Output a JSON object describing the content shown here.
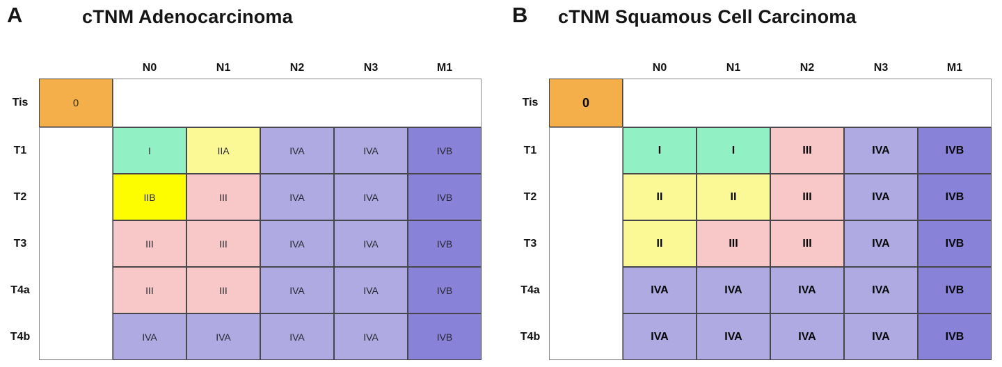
{
  "panels": [
    {
      "letter": "A",
      "title": "cTNM Adenocarcinoma",
      "col_headers": [
        "N0",
        "N1",
        "N2",
        "N3",
        "M1"
      ],
      "row_headers": [
        "Tis",
        "T1",
        "T2",
        "T3",
        "T4a",
        "T4b"
      ],
      "tis": {
        "label": "0",
        "color": "orange"
      },
      "grid": [
        [
          {
            "label": "I",
            "color": "green"
          },
          {
            "label": "IIA",
            "color": "pale_yellow"
          },
          {
            "label": "IVA",
            "color": "light_purple"
          },
          {
            "label": "IVA",
            "color": "light_purple"
          },
          {
            "label": "IVB",
            "color": "dark_purple"
          }
        ],
        [
          {
            "label": "IIB",
            "color": "bright_yellow"
          },
          {
            "label": "III",
            "color": "pink"
          },
          {
            "label": "IVA",
            "color": "light_purple"
          },
          {
            "label": "IVA",
            "color": "light_purple"
          },
          {
            "label": "IVB",
            "color": "dark_purple"
          }
        ],
        [
          {
            "label": "III",
            "color": "pink"
          },
          {
            "label": "III",
            "color": "pink"
          },
          {
            "label": "IVA",
            "color": "light_purple"
          },
          {
            "label": "IVA",
            "color": "light_purple"
          },
          {
            "label": "IVB",
            "color": "dark_purple"
          }
        ],
        [
          {
            "label": "III",
            "color": "pink"
          },
          {
            "label": "III",
            "color": "pink"
          },
          {
            "label": "IVA",
            "color": "light_purple"
          },
          {
            "label": "IVA",
            "color": "light_purple"
          },
          {
            "label": "IVB",
            "color": "dark_purple"
          }
        ],
        [
          {
            "label": "IVA",
            "color": "light_purple"
          },
          {
            "label": "IVA",
            "color": "light_purple"
          },
          {
            "label": "IVA",
            "color": "light_purple"
          },
          {
            "label": "IVA",
            "color": "light_purple"
          },
          {
            "label": "IVB",
            "color": "dark_purple"
          }
        ]
      ]
    },
    {
      "letter": "B",
      "title": "cTNM Squamous Cell Carcinoma",
      "col_headers": [
        "N0",
        "N1",
        "N2",
        "N3",
        "M1"
      ],
      "row_headers": [
        "Tis",
        "T1",
        "T2",
        "T3",
        "T4a",
        "T4b"
      ],
      "tis": {
        "label": "0",
        "color": "orange"
      },
      "grid": [
        [
          {
            "label": "I",
            "color": "green"
          },
          {
            "label": "I",
            "color": "green"
          },
          {
            "label": "III",
            "color": "pink"
          },
          {
            "label": "IVA",
            "color": "light_purple"
          },
          {
            "label": "IVB",
            "color": "dark_purple"
          }
        ],
        [
          {
            "label": "II",
            "color": "pale_yellow"
          },
          {
            "label": "II",
            "color": "pale_yellow"
          },
          {
            "label": "III",
            "color": "pink"
          },
          {
            "label": "IVA",
            "color": "light_purple"
          },
          {
            "label": "IVB",
            "color": "dark_purple"
          }
        ],
        [
          {
            "label": "II",
            "color": "pale_yellow"
          },
          {
            "label": "III",
            "color": "pink"
          },
          {
            "label": "III",
            "color": "pink"
          },
          {
            "label": "IVA",
            "color": "light_purple"
          },
          {
            "label": "IVB",
            "color": "dark_purple"
          }
        ],
        [
          {
            "label": "IVA",
            "color": "light_purple"
          },
          {
            "label": "IVA",
            "color": "light_purple"
          },
          {
            "label": "IVA",
            "color": "light_purple"
          },
          {
            "label": "IVA",
            "color": "light_purple"
          },
          {
            "label": "IVB",
            "color": "dark_purple"
          }
        ],
        [
          {
            "label": "IVA",
            "color": "light_purple"
          },
          {
            "label": "IVA",
            "color": "light_purple"
          },
          {
            "label": "IVA",
            "color": "light_purple"
          },
          {
            "label": "IVA",
            "color": "light_purple"
          },
          {
            "label": "IVB",
            "color": "dark_purple"
          }
        ]
      ]
    }
  ],
  "colors": {
    "orange": "#F4AF4B",
    "green": "#91F1C5",
    "pale_yellow": "#FAF996",
    "bright_yellow": "#FDFD00",
    "pink": "#F8C8C9",
    "light_purple": "#AFAAE2",
    "dark_purple": "#8883D9",
    "white": "#FFFFFF"
  }
}
